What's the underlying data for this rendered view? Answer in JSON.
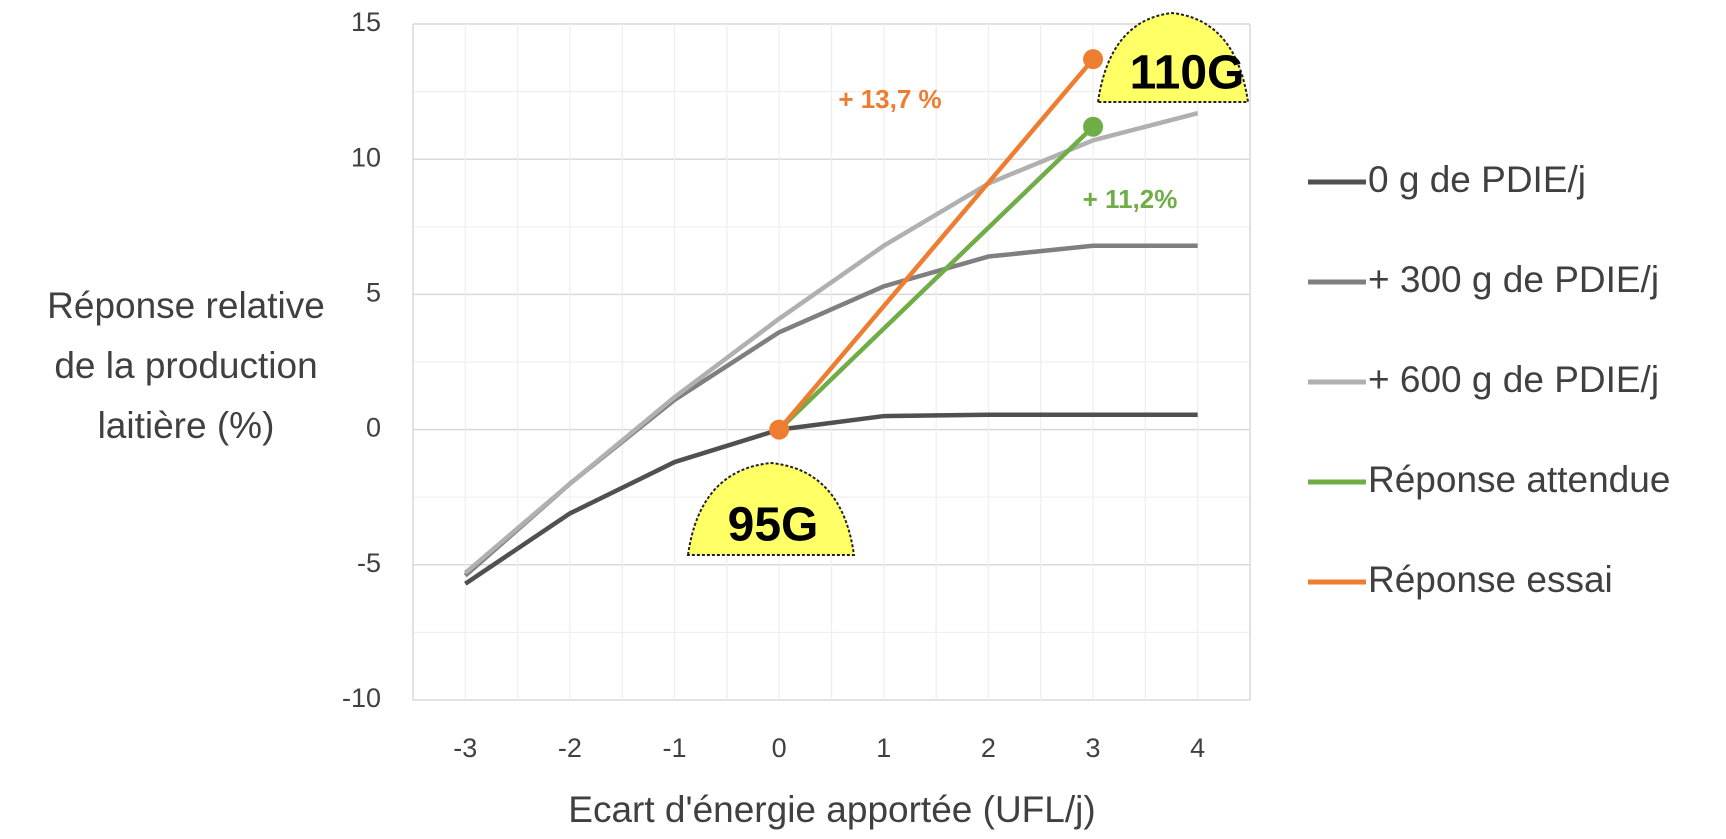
{
  "chart_data": {
    "type": "line",
    "xlabel": "Ecart d'énergie apportée (UFL/j)",
    "ylabel": [
      "Réponse relative",
      "de la production",
      "laitière (%)"
    ],
    "xlim": [
      -3.5,
      4.5
    ],
    "xticks": [
      -3,
      -2,
      -1,
      0,
      1,
      2,
      3,
      4
    ],
    "ylim": [
      -10,
      15
    ],
    "yticks": [
      -10,
      -5,
      0,
      5,
      10,
      15
    ],
    "grid": true,
    "legend": "right",
    "series": [
      {
        "name": "0 g de PDIE/j",
        "color": "#505050",
        "x": [
          -3,
          -2,
          -1,
          0,
          1,
          2,
          3,
          4
        ],
        "values": [
          -5.7,
          -3.1,
          -1.2,
          0,
          0.5,
          0.55,
          0.55,
          0.55
        ]
      },
      {
        "name": "+ 300 g de PDIE/j",
        "color": "#7f7f7f",
        "x": [
          -3,
          -2,
          -1,
          0,
          1,
          2,
          3,
          4
        ],
        "values": [
          -5.4,
          -2.0,
          1.1,
          3.6,
          5.3,
          6.4,
          6.8,
          6.8
        ]
      },
      {
        "name": "+ 600 g de PDIE/j",
        "color": "#b0b0b0",
        "x": [
          -3,
          -2,
          -1,
          0,
          1,
          2,
          3,
          4
        ],
        "values": [
          -5.3,
          -2.0,
          1.2,
          4.1,
          6.8,
          9.1,
          10.7,
          11.7
        ]
      },
      {
        "name": "Réponse attendue",
        "color": "#70ad47",
        "x": [
          0,
          3
        ],
        "values": [
          0,
          11.2
        ],
        "markers": true
      },
      {
        "name": "Réponse essai",
        "color": "#ed7d31",
        "x": [
          0,
          3
        ],
        "values": [
          0,
          13.7
        ],
        "markers": true
      }
    ],
    "annotations": [
      {
        "text": "+ 13,7 %",
        "color": "#ed7d31"
      },
      {
        "text": "+ 11,2%",
        "color": "#70ad47"
      },
      {
        "text": "95G"
      },
      {
        "text": "110G"
      }
    ]
  }
}
